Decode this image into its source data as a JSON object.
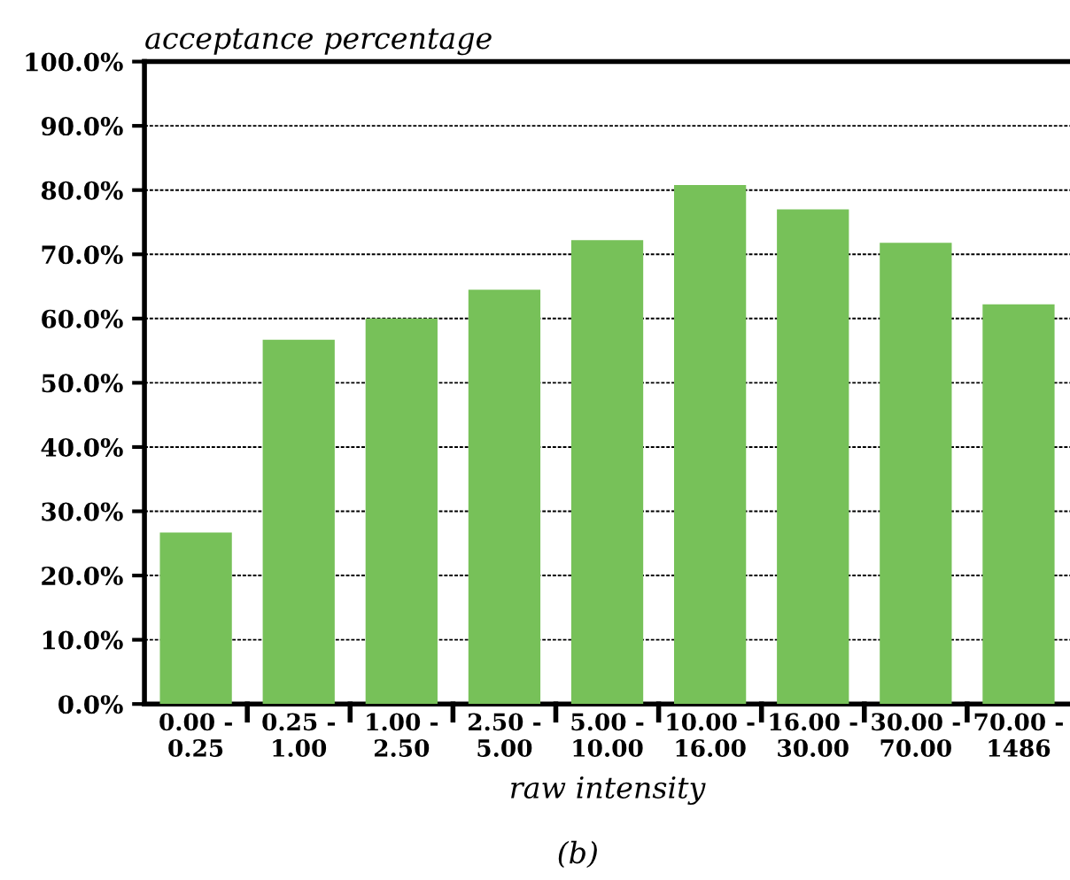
{
  "chart_data": {
    "type": "bar",
    "xlabel": "raw intensity",
    "ylabel": "acceptance percentage",
    "categories": [
      "0.00 -\n0.25",
      "0.25 -\n1.00",
      "1.00 -\n2.50",
      "2.50 -\n5.00",
      "5.00 -\n10.00",
      "10.00 -\n16.00",
      "16.00 -\n30.00",
      "30.00 -\n70.00",
      "70.00 -\n1486"
    ],
    "values": [
      26.7,
      56.7,
      60.0,
      64.5,
      72.2,
      80.8,
      77.0,
      71.8,
      62.2
    ],
    "color": "#77c159",
    "ylim": [
      0,
      100
    ],
    "yticks": [
      {
        "value": 0,
        "label": "0.0%"
      },
      {
        "value": 10,
        "label": "10.0%"
      },
      {
        "value": 20,
        "label": "20.0%"
      },
      {
        "value": 30,
        "label": "30.0%"
      },
      {
        "value": 40,
        "label": "40.0%"
      },
      {
        "value": 50,
        "label": "50.0%"
      },
      {
        "value": 60,
        "label": "60.0%"
      },
      {
        "value": 70,
        "label": "70.0%"
      },
      {
        "value": 80,
        "label": "80.0%"
      },
      {
        "value": 90,
        "label": "90.0%"
      },
      {
        "value": 100,
        "label": "100.0%"
      }
    ],
    "grid": "y",
    "line_style": "dashed",
    "annotations": [
      "(b)"
    ]
  }
}
